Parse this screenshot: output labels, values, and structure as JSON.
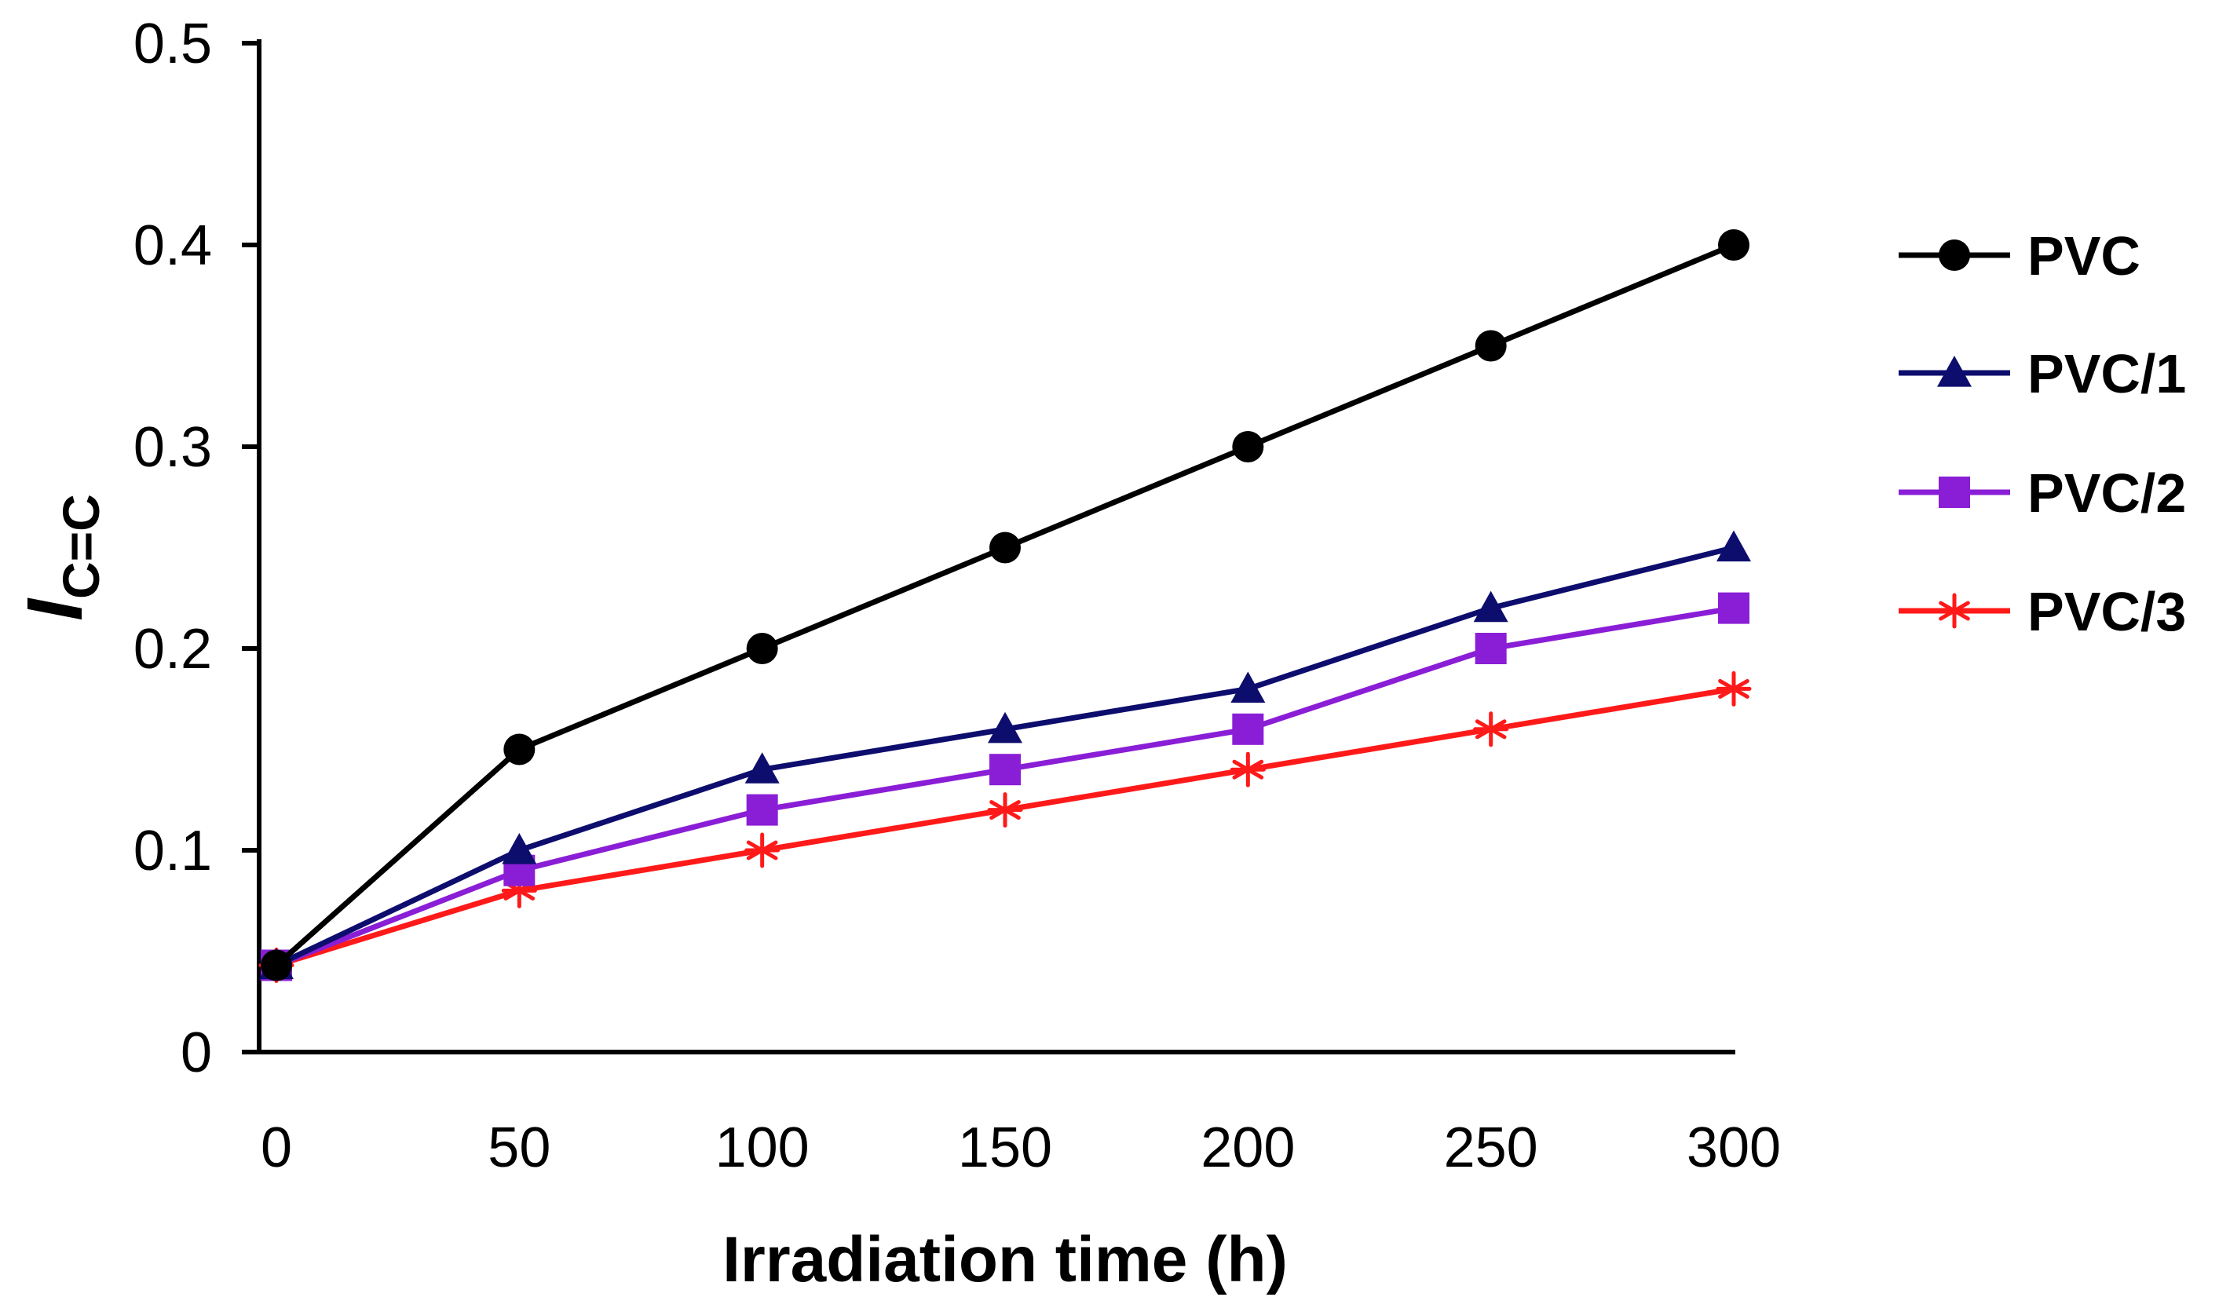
{
  "chart_data": {
    "type": "line",
    "title": "",
    "xlabel": "Irradiation time (h)",
    "ylabel_main": "I",
    "ylabel_sub": "C=C",
    "x": [
      0,
      50,
      100,
      150,
      200,
      250,
      300
    ],
    "x_ticks": [
      "0",
      "50",
      "100",
      "150",
      "200",
      "250",
      "300"
    ],
    "y_ticks": [
      "0",
      "0.1",
      "0.2",
      "0.3",
      "0.4",
      "0.5"
    ],
    "xlim": [
      0,
      300
    ],
    "ylim": [
      0,
      0.5
    ],
    "grid": false,
    "legend_position": "right",
    "series": [
      {
        "name": "PVC",
        "color": "#000000",
        "marker": "circle",
        "values": [
          0.043,
          0.15,
          0.2,
          0.25,
          0.3,
          0.35,
          0.4
        ]
      },
      {
        "name": "PVC/1",
        "color": "#0d0d6e",
        "marker": "triangle",
        "values": [
          0.043,
          0.1,
          0.14,
          0.16,
          0.18,
          0.22,
          0.25
        ]
      },
      {
        "name": "PVC/2",
        "color": "#8a1ed6",
        "marker": "square",
        "values": [
          0.043,
          0.09,
          0.12,
          0.14,
          0.16,
          0.2,
          0.22
        ]
      },
      {
        "name": "PVC/3",
        "color": "#ff1a1a",
        "marker": "star",
        "values": [
          0.043,
          0.08,
          0.1,
          0.12,
          0.14,
          0.16,
          0.18
        ]
      }
    ]
  }
}
